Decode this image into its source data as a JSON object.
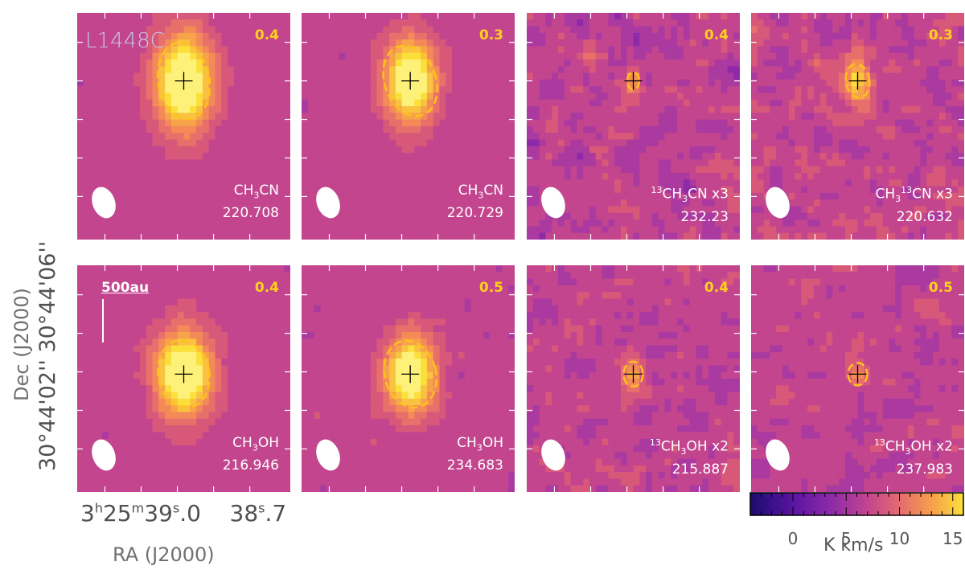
{
  "source_name": "L1448C",
  "axes": {
    "xlabel": "RA (J2000)",
    "ylabel": "Dec (J2000)",
    "dec_ticks": [
      "30°44'02''",
      "30°44'06''"
    ],
    "ra_tick_1": {
      "h": "3",
      "m": "25",
      "s": "39",
      "frac": ".0"
    },
    "ra_tick_2": {
      "s": "38",
      "frac": ".7"
    }
  },
  "scalebar": "500au",
  "colorbar": {
    "label": "K km/s",
    "ticks": [
      "0",
      "5",
      "10",
      "15"
    ],
    "range": [
      -4,
      16
    ],
    "colormap": [
      "#1b0c6e",
      "#5a14a0",
      "#8e2aa8",
      "#c2458e",
      "#e8706b",
      "#f7a34a",
      "#fbe03a"
    ]
  },
  "chart_data": {
    "type": "heatmap",
    "units": "K km/s",
    "panels": [
      {
        "id": "p1",
        "row": 0,
        "col": 0,
        "species_html": "CH<sub>3</sub>CN",
        "freq": "220.708",
        "rms": "0.4",
        "peak": 16,
        "core_rx": 0.1,
        "core_ry": 0.16,
        "contour": {
          "rx": 0.12,
          "ry": 0.17,
          "tilt": -10
        },
        "cx": 0.5,
        "cy": 0.3,
        "noise": 0.6
      },
      {
        "id": "p2",
        "row": 0,
        "col": 1,
        "species_html": "CH<sub>3</sub>CN",
        "freq": "220.729",
        "rms": "0.3",
        "peak": 15,
        "core_rx": 0.09,
        "core_ry": 0.14,
        "contour": {
          "rx": 0.12,
          "ry": 0.16,
          "tilt": -20
        },
        "cx": 0.51,
        "cy": 0.3,
        "noise": 0.6
      },
      {
        "id": "p3",
        "row": 0,
        "col": 2,
        "species_html": "<sup>13</sup>CH<sub>3</sub>CN x3",
        "freq": "232.23",
        "rms": "0.4",
        "peak": 6,
        "core_rx": 0.03,
        "core_ry": 0.05,
        "contour": {
          "rx": 0.028,
          "ry": 0.038,
          "tilt": 0
        },
        "cx": 0.5,
        "cy": 0.3,
        "noise": 2.2
      },
      {
        "id": "p4",
        "row": 0,
        "col": 3,
        "species_html": "CH<sub>3</sub><sup>13</sup>CN x3",
        "freq": "220.632",
        "rms": "0.3",
        "peak": 9,
        "core_rx": 0.05,
        "core_ry": 0.08,
        "contour": {
          "rx": 0.055,
          "ry": 0.075,
          "tilt": -10
        },
        "cx": 0.5,
        "cy": 0.3,
        "noise": 2.0
      },
      {
        "id": "p5",
        "row": 1,
        "col": 0,
        "species_html": "CH<sub>3</sub>OH",
        "freq": "216.946",
        "rms": "0.4",
        "peak": 16,
        "core_rx": 0.1,
        "core_ry": 0.14,
        "contour": {
          "rx": 0.12,
          "ry": 0.15,
          "tilt": -10
        },
        "cx": 0.5,
        "cy": 0.48,
        "noise": 0.6
      },
      {
        "id": "p6",
        "row": 1,
        "col": 1,
        "species_html": "CH<sub>3</sub>OH",
        "freq": "234.683",
        "rms": "0.5",
        "peak": 15,
        "core_rx": 0.09,
        "core_ry": 0.13,
        "contour": {
          "rx": 0.12,
          "ry": 0.15,
          "tilt": -15
        },
        "cx": 0.51,
        "cy": 0.48,
        "noise": 0.8
      },
      {
        "id": "p7",
        "row": 1,
        "col": 2,
        "species_html": "<sup>13</sup>CH<sub>3</sub>OH x2",
        "freq": "215.887",
        "rms": "0.4",
        "peak": 7,
        "core_rx": 0.04,
        "core_ry": 0.05,
        "contour": {
          "rx": 0.045,
          "ry": 0.055,
          "tilt": 0
        },
        "cx": 0.5,
        "cy": 0.48,
        "noise": 1.6
      },
      {
        "id": "p8",
        "row": 1,
        "col": 3,
        "species_html": "<sup>13</sup>CH<sub>3</sub>OH x2",
        "freq": "237.983",
        "rms": "0.5",
        "peak": 6,
        "core_rx": 0.04,
        "core_ry": 0.045,
        "contour": {
          "rx": 0.045,
          "ry": 0.05,
          "tilt": 0
        },
        "cx": 0.5,
        "cy": 0.48,
        "noise": 1.5
      }
    ]
  }
}
